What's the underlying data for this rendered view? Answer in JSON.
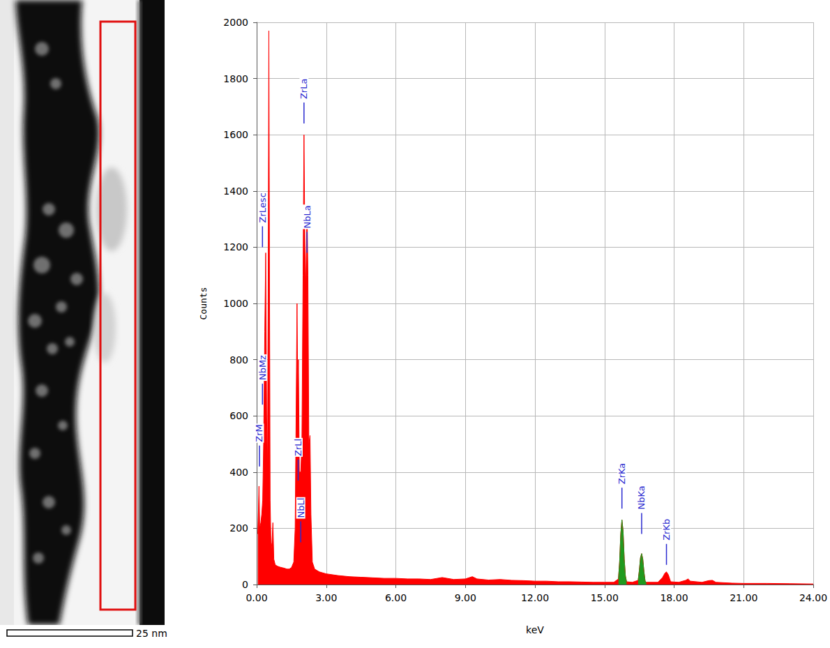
{
  "chart_data": {
    "type": "line",
    "x_label": "keV",
    "y_label": "Counts",
    "xlim": [
      0,
      24
    ],
    "xticks": [
      {
        "value": 0,
        "label": "0.00"
      },
      {
        "value": 3,
        "label": "3.00"
      },
      {
        "value": 6,
        "label": "6.00"
      },
      {
        "value": 9,
        "label": "9.00"
      },
      {
        "value": 12,
        "label": "12.00"
      },
      {
        "value": 15,
        "label": "15.00"
      },
      {
        "value": 18,
        "label": "18.00"
      },
      {
        "value": 21,
        "label": "21.00"
      },
      {
        "value": 24,
        "label": "24.00"
      }
    ],
    "ylim": [
      0,
      2000
    ],
    "yticks": [
      0,
      200,
      400,
      600,
      800,
      1000,
      1200,
      1400,
      1600,
      1800,
      2000
    ],
    "grid": true,
    "x": [
      0.05,
      0.1,
      0.13,
      0.18,
      0.22,
      0.26,
      0.3,
      0.35,
      0.39,
      0.43,
      0.47,
      0.5,
      0.525,
      0.55,
      0.58,
      0.62,
      0.66,
      0.7,
      0.74,
      0.8,
      0.9,
      1.0,
      1.1,
      1.2,
      1.3,
      1.4,
      1.5,
      1.6,
      1.66,
      1.7,
      1.74,
      1.77,
      1.8,
      1.84,
      1.9,
      1.95,
      2.0,
      2.04,
      2.08,
      2.12,
      2.17,
      2.21,
      2.25,
      2.3,
      2.34,
      2.4,
      2.5,
      2.7,
      3.0,
      3.5,
      4.0,
      4.5,
      5.0,
      5.5,
      6.0,
      6.5,
      7.0,
      7.5,
      8.0,
      8.5,
      9.0,
      9.3,
      9.5,
      10.0,
      10.5,
      11.0,
      11.5,
      12.0,
      12.5,
      13.0,
      13.5,
      14.0,
      14.5,
      15.0,
      15.4,
      15.6,
      15.65,
      15.7,
      15.75,
      15.8,
      15.85,
      15.9,
      15.95,
      16.2,
      16.45,
      16.5,
      16.55,
      16.6,
      16.65,
      16.7,
      16.75,
      16.8,
      17.3,
      17.5,
      17.6,
      17.67,
      17.75,
      17.85,
      18.2,
      18.5,
      18.6,
      18.7,
      19.2,
      19.5,
      19.65,
      19.8,
      20.5,
      21.0,
      22.0,
      23.0,
      24.0
    ],
    "series": [
      {
        "color": "#ff0000",
        "values": [
          180,
          350,
          200,
          220,
          250,
          300,
          500,
          900,
          1180,
          600,
          400,
          1200,
          1970,
          1200,
          300,
          120,
          150,
          220,
          90,
          70,
          65,
          62,
          60,
          58,
          55,
          55,
          60,
          80,
          200,
          600,
          1000,
          700,
          800,
          400,
          400,
          500,
          1100,
          1600,
          1200,
          1050,
          1350,
          1100,
          500,
          530,
          250,
          80,
          55,
          45,
          38,
          32,
          28,
          26,
          24,
          22,
          22,
          20,
          20,
          18,
          25,
          18,
          20,
          28,
          20,
          16,
          18,
          15,
          14,
          12,
          12,
          10,
          10,
          9,
          8,
          8,
          8,
          20,
          80,
          180,
          230,
          190,
          90,
          30,
          10,
          8,
          15,
          50,
          95,
          110,
          90,
          45,
          12,
          8,
          8,
          25,
          40,
          45,
          35,
          10,
          8,
          15,
          20,
          12,
          8,
          14,
          15,
          8,
          5,
          4,
          4,
          3,
          2
        ]
      },
      {
        "color": "#1f9a1f",
        "values": [
          null,
          null,
          null,
          null,
          null,
          null,
          null,
          null,
          null,
          null,
          null,
          null,
          null,
          null,
          null,
          null,
          null,
          null,
          null,
          null,
          null,
          null,
          null,
          null,
          null,
          null,
          null,
          null,
          null,
          null,
          null,
          null,
          null,
          null,
          null,
          null,
          null,
          null,
          null,
          null,
          null,
          null,
          null,
          null,
          null,
          null,
          null,
          null,
          null,
          null,
          null,
          null,
          null,
          null,
          null,
          null,
          null,
          null,
          null,
          null,
          null,
          null,
          null,
          null,
          null,
          null,
          null,
          null,
          null,
          null,
          null,
          null,
          null,
          null,
          null,
          20,
          80,
          180,
          230,
          190,
          90,
          30,
          10,
          null,
          15,
          50,
          95,
          110,
          90,
          45,
          12,
          8,
          null,
          null,
          null,
          null,
          null,
          null,
          null,
          null,
          null,
          null,
          null,
          null,
          null,
          null,
          null,
          null,
          null,
          null,
          null
        ]
      }
    ],
    "annotations": [
      {
        "text": "ZrLa",
        "x": 2.04,
        "y": 1640
      },
      {
        "text": "NbLa",
        "x": 2.17,
        "y": 1180
      },
      {
        "text": "ZrLesc",
        "x": 0.25,
        "y": 1200
      },
      {
        "text": "NbMz",
        "x": 0.25,
        "y": 640
      },
      {
        "text": "ZrM",
        "x": 0.12,
        "y": 420
      },
      {
        "text": "ZrLl",
        "x": 1.79,
        "y": 370
      },
      {
        "text": "NbLl",
        "x": 1.9,
        "y": 150
      },
      {
        "text": "ZrKa",
        "x": 15.75,
        "y": 270
      },
      {
        "text": "NbKa",
        "x": 16.6,
        "y": 180
      },
      {
        "text": "ZrKb",
        "x": 17.67,
        "y": 70
      }
    ]
  },
  "micrograph": {
    "scale_bar_label": "25 nm"
  }
}
